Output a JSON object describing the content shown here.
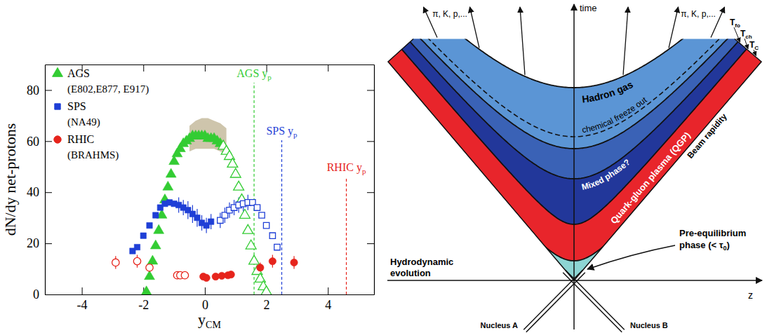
{
  "chart_data": {
    "type": "scatter",
    "y_label": "dN/dy net-protons",
    "x_label": {
      "text": "y",
      "subscript": "CM"
    },
    "xlim": [
      -5.2,
      5.5
    ],
    "ylim": [
      0,
      90
    ],
    "xticks": [
      -4,
      -2,
      0,
      2,
      4
    ],
    "yticks": [
      0,
      20,
      40,
      60,
      80
    ],
    "legend": "upper left",
    "series": [
      {
        "name": "AGS",
        "experiments": "(E802,E877, E917)",
        "color": "#33cc33",
        "marker": "triangle",
        "x": [
          -1.9,
          -1.8,
          -1.7,
          -1.6,
          -1.5,
          -1.4,
          -1.3,
          -1.2,
          -1.1,
          -1.0,
          -0.9,
          -0.8,
          -0.7,
          -0.6,
          -0.5,
          -0.4,
          -0.3,
          -0.2,
          -0.1,
          0.0,
          0.1,
          0.2,
          0.3,
          0.4,
          0.5
        ],
        "values": [
          1,
          7,
          13,
          19,
          25,
          31,
          37,
          42,
          47,
          52,
          55,
          57,
          59,
          60,
          61,
          62,
          62,
          62,
          62,
          62,
          61,
          61,
          61,
          60,
          59
        ]
      },
      {
        "color": "#33cc33",
        "marker": "triangle-open",
        "x": [
          0.6,
          0.7,
          0.8,
          0.9,
          1.0,
          1.1,
          1.2,
          1.3,
          1.4,
          1.5,
          1.6,
          1.7,
          1.8,
          1.9,
          2.0
        ],
        "values": [
          58,
          56,
          54,
          51,
          47,
          42,
          37,
          31,
          25,
          19,
          13,
          9,
          6,
          3,
          1
        ]
      },
      {
        "name": "SPS",
        "experiments": "(NA49)",
        "color": "#1f3fd6",
        "marker": "square",
        "x": [
          -2.35,
          -2.2,
          -2.0,
          -1.8,
          -1.6,
          -1.45,
          -1.3,
          -1.15,
          -1.0,
          -0.85,
          -0.7,
          -0.55,
          -0.4,
          -0.25,
          -0.1,
          0.05,
          0.2
        ],
        "values": [
          17,
          18.5,
          23,
          27,
          31,
          34,
          35.5,
          36,
          35.5,
          35,
          34,
          33,
          31.5,
          30,
          28,
          27,
          28.5
        ],
        "errors": [
          null,
          null,
          null,
          null,
          null,
          null,
          null,
          null,
          null,
          3,
          3,
          3.5,
          3.5,
          3.5,
          3,
          3,
          3
        ]
      },
      {
        "color": "#1f3fd6",
        "marker": "square-open",
        "x": [
          0.5,
          0.65,
          0.8,
          0.95,
          1.1,
          1.25,
          1.4,
          1.55,
          1.7,
          1.85,
          2.0,
          2.2,
          2.35
        ],
        "values": [
          29,
          31,
          33,
          34,
          35,
          35.5,
          36,
          36,
          34,
          31,
          27,
          23,
          18.5
        ],
        "errors": [
          3,
          3,
          3,
          3,
          3,
          3,
          3,
          null,
          null,
          null,
          null,
          null,
          null
        ]
      },
      {
        "name": "RHIC",
        "experiments": "(BRAHMS)",
        "color": "#e6241c",
        "marker": "circle",
        "x": [
          -0.05,
          0.05,
          0.35,
          0.55,
          0.75,
          0.85,
          1.8,
          2.2,
          2.9
        ],
        "values": [
          7,
          6.5,
          7,
          7.3,
          7.5,
          7.8,
          10.5,
          13,
          12.5
        ],
        "errors": [
          1,
          1,
          1,
          1,
          1,
          1,
          2,
          2.5,
          2.5
        ]
      },
      {
        "color": "#e6241c",
        "marker": "circle-open",
        "x": [
          -2.9,
          -2.2,
          -1.8,
          -0.9,
          -0.8,
          -0.65
        ],
        "values": [
          12.5,
          13,
          10.5,
          7.5,
          7.5,
          7.5
        ],
        "errors": [
          2.5,
          2.5,
          2,
          1,
          1,
          1
        ]
      }
    ],
    "systematic_band": {
      "x": [
        -0.5,
        -0.3,
        -0.1,
        0.1,
        0.3,
        0.5,
        0.7
      ],
      "low": [
        56,
        57,
        57,
        57,
        57,
        56,
        55
      ],
      "high": [
        66,
        68,
        69,
        69,
        68,
        67,
        65
      ],
      "color": "#c9bfa3"
    },
    "reference_lines": [
      {
        "x": 1.6,
        "label": "AGS y",
        "subscript": "p",
        "color": "#33cc33",
        "line_style": "dashed"
      },
      {
        "x": 2.5,
        "label": "SPS y",
        "subscript": "p",
        "color": "#1f3fd6",
        "line_style": "dashed"
      },
      {
        "x": 4.6,
        "label": "RHIC y",
        "subscript": "p",
        "color": "#e6241c",
        "line_style": "dashed"
      }
    ]
  },
  "diagram": {
    "time_axis": "time",
    "z_axis": "z",
    "particles": [
      "π, K, p,...",
      "π, K, p,..."
    ],
    "temperatures": [
      {
        "symbol": "T",
        "sub": "fo"
      },
      {
        "symbol": "T",
        "sub": "ch"
      },
      {
        "symbol": "T",
        "sub": "C"
      }
    ],
    "hadron_gas": "Hadron gas",
    "chemical_freeze_out": "chemical freeze out",
    "mixed_phase": "Mixed phase?",
    "qgp": "Quark-gluon plasma (QGP)",
    "beam_rapidity": "Beam rapidity",
    "pre_equilibrium": {
      "lines": [
        "Pre-equilibrium",
        "phase (< τ"
      ],
      "sub": "0",
      "close": ")"
    },
    "hydrodynamic_evolution": [
      "Hydrodynamic",
      "evolution"
    ],
    "nuclei": [
      "Nucleus A",
      "Nucleus B"
    ]
  }
}
